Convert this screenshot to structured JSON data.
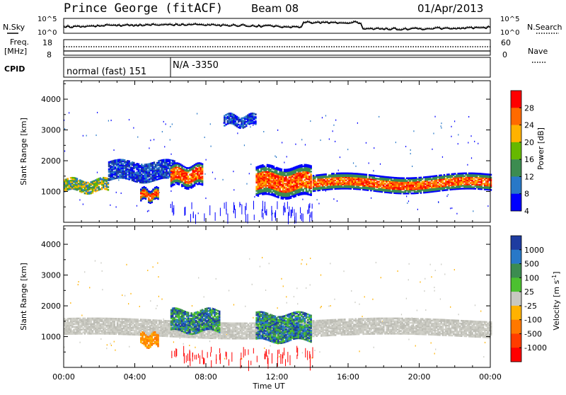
{
  "header": {
    "station": "Prince George (fitACF)",
    "beam": "Beam 08",
    "date": "01/Apr/2013"
  },
  "noise_panel": {
    "left_label": "N.Sky",
    "right_label": "N.Search",
    "left_ticks": [
      "10^5",
      "10^0"
    ],
    "right_ticks": [
      "10^5",
      "10^0"
    ]
  },
  "freq_panel": {
    "left_label_1": "Freq.",
    "left_label_2": "[MHz]",
    "left_ticks": [
      "18",
      "8"
    ],
    "right_label": "Nave",
    "right_ticks": [
      "60",
      "0"
    ]
  },
  "cpid_panel": {
    "label": "CPID",
    "segments": [
      {
        "text": "normal (fast) 151",
        "start_hour": 0
      },
      {
        "text": "N/A -3350",
        "start_hour": 6
      }
    ]
  },
  "chart_data": [
    {
      "type": "heatmap",
      "name": "power",
      "xlabel": "Time UT",
      "ylabel": "Slant Range [km]",
      "xlim": [
        0,
        24
      ],
      "ylim": [
        0,
        4600
      ],
      "yticks": [
        1000,
        2000,
        3000,
        4000
      ],
      "xticks": [
        "00:00",
        "04:00",
        "08:00",
        "12:00",
        "16:00",
        "20:00",
        "00:00"
      ],
      "colorbar": {
        "label": "Power [dB]",
        "ticks": [
          "28",
          "24",
          "20",
          "16",
          "12",
          "8",
          "4"
        ],
        "colors": [
          "#ff0000",
          "#ff6a00",
          "#ffb200",
          "#66b800",
          "#3c8c50",
          "#2878c8",
          "#0000ff"
        ]
      },
      "features": [
        {
          "from_h": 0.0,
          "to_h": 2.5,
          "center_km": 1180,
          "width_km": 380,
          "level": "mid"
        },
        {
          "from_h": 2.5,
          "to_h": 6.2,
          "center_km": 1650,
          "width_km": 600,
          "level": "low"
        },
        {
          "from_h": 4.3,
          "to_h": 5.3,
          "center_km": 880,
          "width_km": 380,
          "level": "high"
        },
        {
          "from_h": 6.0,
          "to_h": 7.8,
          "center_km": 1500,
          "width_km": 700,
          "level": "high"
        },
        {
          "from_h": 9.0,
          "to_h": 10.8,
          "center_km": 3300,
          "width_km": 350,
          "level": "low"
        },
        {
          "from_h": 10.8,
          "to_h": 13.9,
          "center_km": 1300,
          "width_km": 950,
          "level": "high"
        },
        {
          "from_h": 14.0,
          "to_h": 24.0,
          "center_km": 1250,
          "width_km": 500,
          "level": "high"
        }
      ]
    },
    {
      "type": "heatmap",
      "name": "velocity",
      "xlabel": "Time UT",
      "ylabel": "Slant Range [km]",
      "xlim": [
        0,
        24
      ],
      "ylim": [
        0,
        4600
      ],
      "yticks": [
        1000,
        2000,
        3000,
        4000
      ],
      "xticks": [
        "00:00",
        "04:00",
        "08:00",
        "12:00",
        "16:00",
        "20:00",
        "00:00"
      ],
      "colorbar": {
        "label": "Velocity [m s^-1]",
        "ticks": [
          "1000",
          "500",
          "100",
          "25",
          "-25",
          "-100",
          "-500",
          "-1000"
        ],
        "colors": [
          "#1e3ca0",
          "#2878c8",
          "#3c8c50",
          "#4cc030",
          "#c8c8c0",
          "#ffb200",
          "#ff7800",
          "#ff3c00",
          "#ff0000"
        ]
      },
      "features": [
        {
          "from_h": 0.0,
          "to_h": 24.0,
          "center_km": 1250,
          "width_km": 500,
          "level": "ground"
        },
        {
          "from_h": 4.3,
          "to_h": 5.3,
          "center_km": 880,
          "width_km": 380,
          "level": "negative"
        },
        {
          "from_h": 6.0,
          "to_h": 8.8,
          "center_km": 1500,
          "width_km": 700,
          "level": "positive"
        },
        {
          "from_h": 10.8,
          "to_h": 13.9,
          "center_km": 1300,
          "width_km": 900,
          "level": "positive"
        }
      ]
    }
  ]
}
